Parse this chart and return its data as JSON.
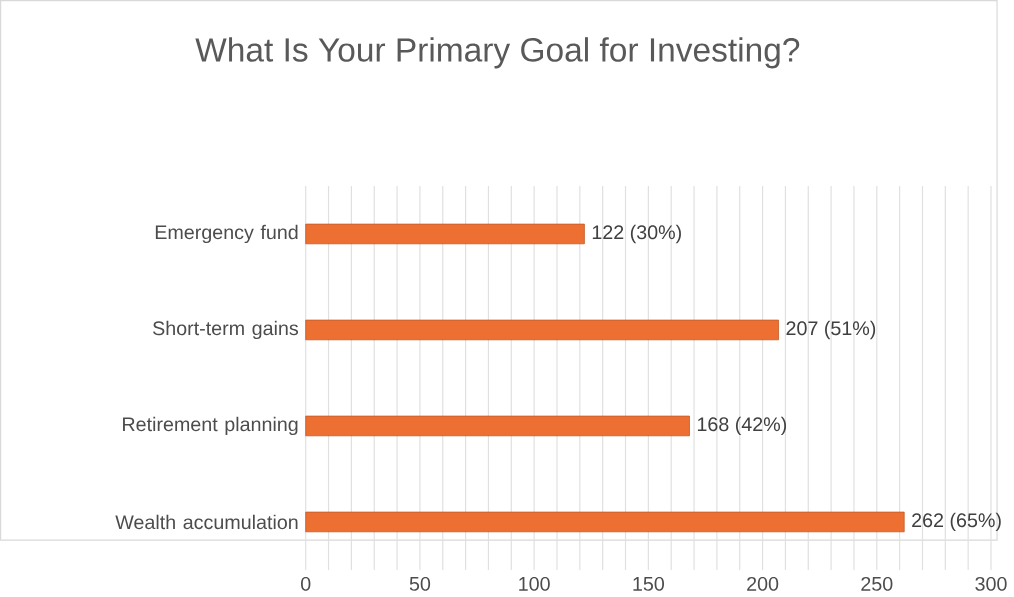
{
  "chart_data": {
    "type": "bar",
    "orientation": "horizontal",
    "title": "What Is Your Primary Goal for Investing?",
    "categories": [
      "Emergency fund",
      "Short-term gains",
      "Retirement planning",
      "Wealth accumulation"
    ],
    "values": [
      122,
      207,
      168,
      262
    ],
    "value_labels": [
      "122 (30%)",
      "207 (51%)",
      "168 (42%)",
      "262 (65%)"
    ],
    "color": "#ed7032",
    "xlim": [
      0,
      300
    ],
    "xticks": [
      0,
      {
        "value": 10,
        "label": null
      },
      {
        "value": 20,
        "label": null
      },
      {
        "value": 30,
        "label": null
      },
      {
        "value": 40,
        "label": null
      },
      50,
      {
        "value": 60,
        "label": null
      },
      {
        "value": 70,
        "label": null
      },
      {
        "value": 80,
        "label": null
      },
      {
        "value": 90,
        "label": null
      },
      100,
      {
        "value": 110,
        "label": null
      },
      {
        "value": 120,
        "label": null
      },
      {
        "value": 130,
        "label": null
      },
      {
        "value": 140,
        "label": null
      },
      150,
      {
        "value": 160,
        "label": null
      },
      {
        "value": 170,
        "label": null
      },
      {
        "value": 180,
        "label": null
      },
      {
        "value": 190,
        "label": null
      },
      200,
      {
        "value": 210,
        "label": null
      },
      {
        "value": 220,
        "label": null
      },
      {
        "value": 230,
        "label": null
      },
      {
        "value": 240,
        "label": null
      },
      250,
      {
        "value": 260,
        "label": null
      },
      {
        "value": 270,
        "label": null
      },
      {
        "value": 280,
        "label": null
      },
      {
        "value": 290,
        "label": null
      },
      300
    ],
    "grid": "x"
  }
}
